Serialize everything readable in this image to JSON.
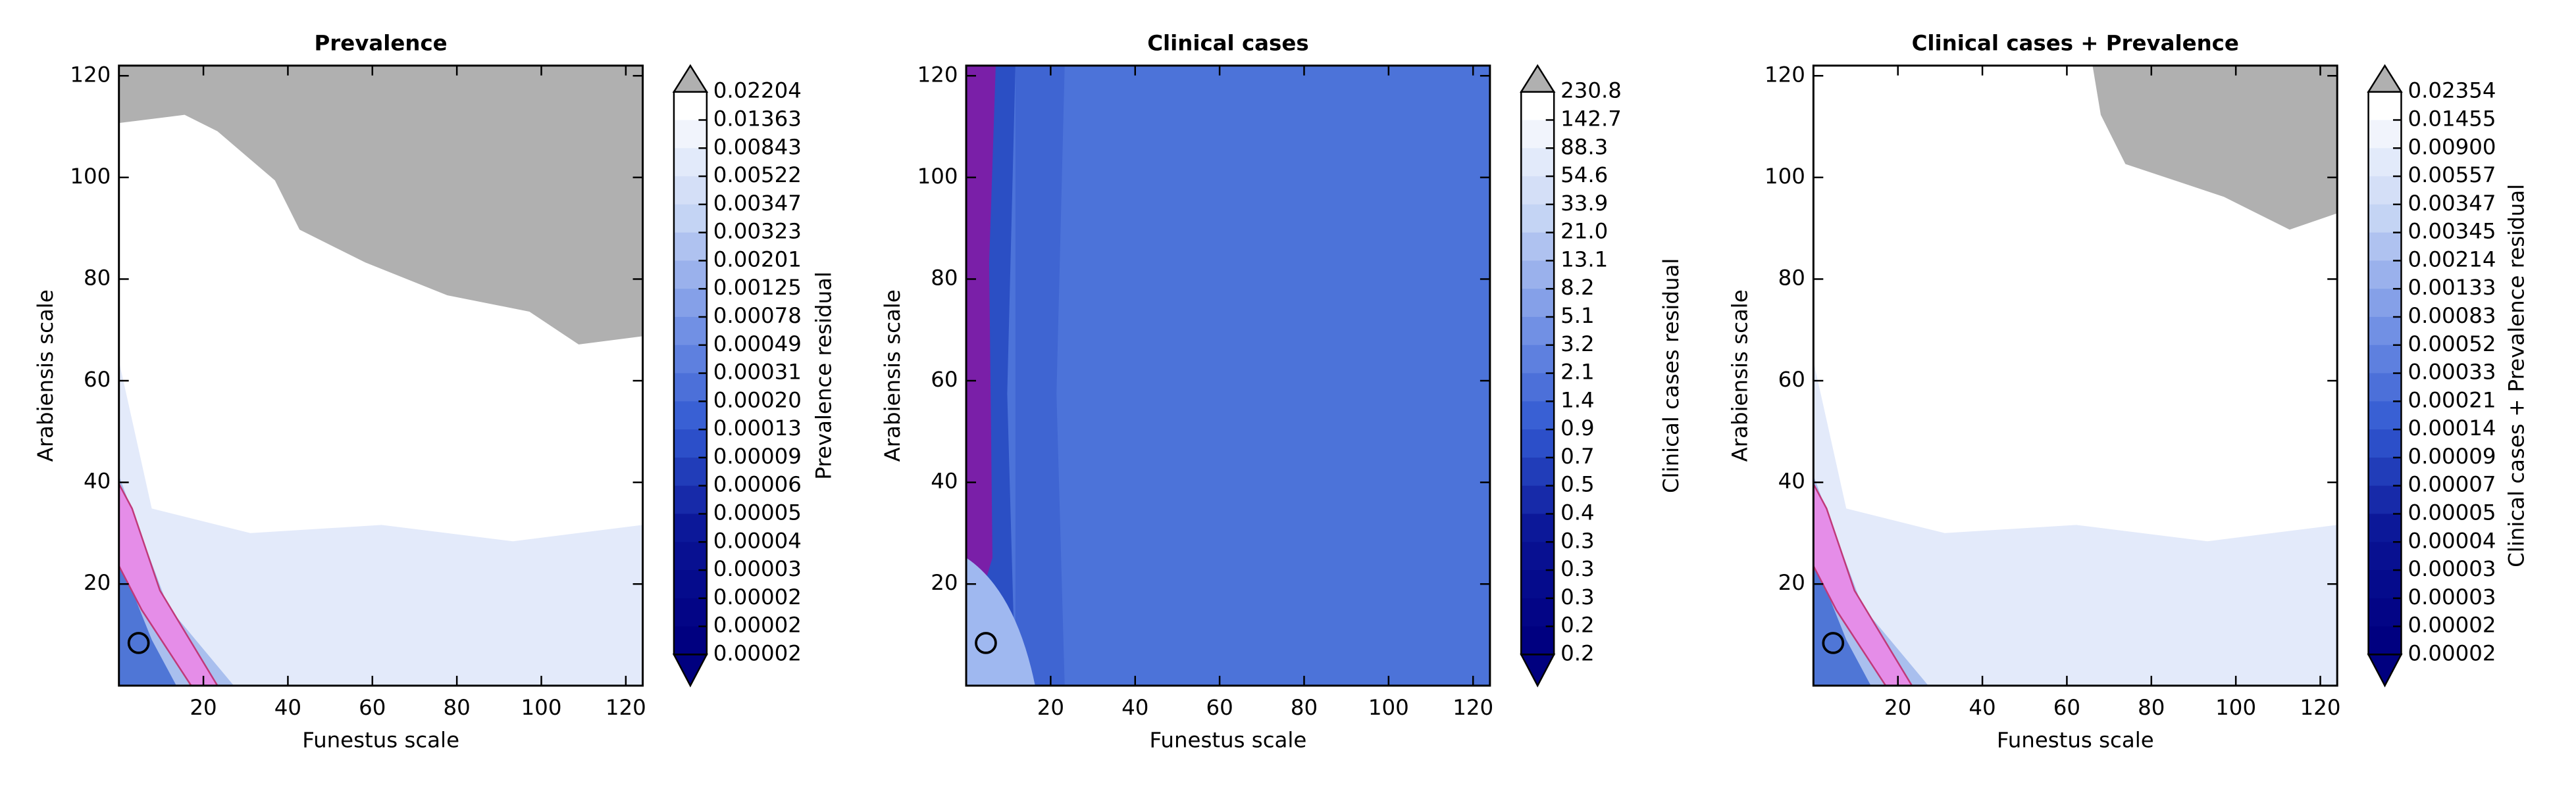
{
  "chart_data": [
    {
      "type": "contour",
      "title": "Prevalence",
      "xlabel": "Funestus scale",
      "ylabel": "Arabiensis scale",
      "xlim": [
        0,
        124
      ],
      "ylim": [
        0,
        122
      ],
      "xticks": [
        20,
        40,
        60,
        80,
        100,
        120
      ],
      "yticks": [
        20,
        40,
        60,
        80,
        100,
        120
      ],
      "colorbar_label": "Prevalence residual",
      "colorbar_ticks": [
        0.02204,
        0.01363,
        0.00843,
        0.00522,
        0.00347,
        0.00323,
        0.00201,
        0.00125,
        0.00078,
        0.00049,
        0.00031,
        {
          "value": 0.0002,
          "label": "0.00020"
        },
        0.00013,
        9e-05,
        6e-05,
        5e-05,
        4e-05,
        3e-05,
        2e-05,
        2e-05,
        2e-05
      ]
    },
    {
      "type": "contour",
      "title": "Clinical cases",
      "xlabel": "Funestus scale",
      "ylabel": "Arabiensis scale",
      "xlim": [
        0,
        124
      ],
      "ylim": [
        0,
        122
      ],
      "xticks": [
        20,
        40,
        60,
        80,
        100,
        120
      ],
      "yticks": [
        20,
        40,
        60,
        80,
        100,
        120
      ],
      "colorbar_label": "Clinical cases residual",
      "colorbar_ticks": [
        230.8,
        142.7,
        88.3,
        54.6,
        33.9,
        {
          "value": 21,
          "label": "21.0"
        },
        13.1,
        8.2,
        5.1,
        3.2,
        2.1,
        1.4,
        0.9,
        0.7,
        0.5,
        0.4,
        0.3,
        0.3,
        0.3,
        0.2,
        0.2
      ]
    },
    {
      "type": "contour",
      "title": "Clinical cases + Prevalence",
      "xlabel": "Funestus scale",
      "ylabel": "Arabiensis scale",
      "xlim": [
        0,
        124
      ],
      "ylim": [
        0,
        122
      ],
      "xticks": [
        20,
        40,
        60,
        80,
        100,
        120
      ],
      "yticks": [
        20,
        40,
        60,
        80,
        100,
        120
      ],
      "colorbar_label": "Clinical cases + Prevalence residual",
      "colorbar_ticks": [
        0.02354,
        0.01455,
        {
          "value": 0.009,
          "label": "0.00900"
        },
        0.00557,
        0.00347,
        0.00345,
        0.00214,
        0.00133,
        0.00083,
        0.00052,
        0.00033,
        0.00021,
        0.00014,
        9e-05,
        7e-05,
        5e-05,
        4e-05,
        3e-05,
        3e-05,
        2e-05,
        2e-05
      ]
    }
  ]
}
